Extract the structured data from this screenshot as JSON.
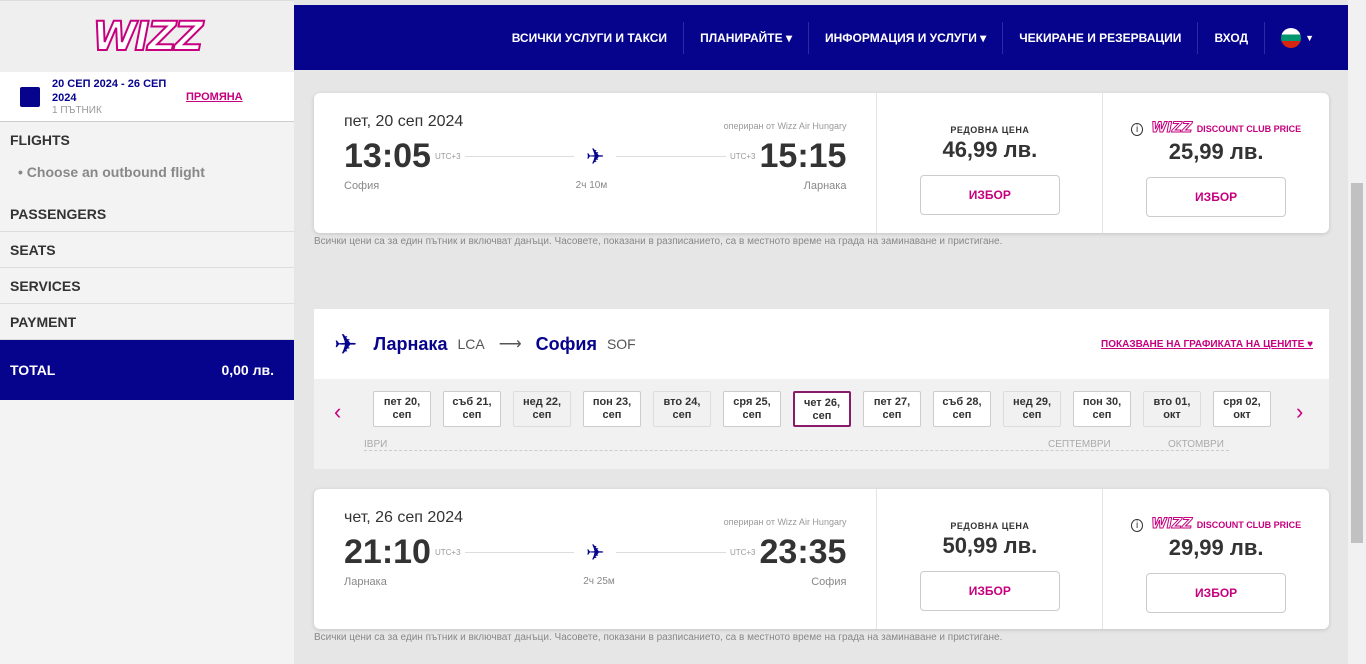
{
  "sidebar": {
    "logo": "WIZZ",
    "trip_dates": "20 СЕП 2024 - 26 СЕП 2024",
    "passengers": "1 ПЪТНИК",
    "change_label": "ПРОМЯНА",
    "steps": [
      "FLIGHTS",
      "PASSENGERS",
      "SEATS",
      "SERVICES",
      "PAYMENT"
    ],
    "current_substep": "Choose an outbound flight",
    "total_label": "TOTAL",
    "total_value": "0,00 лв."
  },
  "header": {
    "nav": [
      "ВСИЧКИ УСЛУГИ И ТАКСИ",
      "ПЛАНИРАЙТЕ ▾",
      "ИНФОРМАЦИЯ И УСЛУГИ ▾",
      "ЧЕКИРАНЕ И РЕЗЕРВАЦИИ",
      "ВХОД"
    ],
    "language": "bg"
  },
  "flights": [
    {
      "date": "пет, 20 сеп 2024",
      "operator": "опериран от Wizz Air Hungary",
      "dep_time": "13:05",
      "arr_time": "15:15",
      "dep_utc": "UTC+3",
      "arr_utc": "UTC+3",
      "duration": "2ч 10м",
      "from": "София",
      "to": "Ларнака",
      "regular_label": "РЕДОВНА ЦЕНА",
      "regular_price": "46,99 лв.",
      "club_label": "DISCOUNT CLUB PRICE",
      "club_price": "25,99 лв.",
      "select": "ИЗБОР"
    },
    {
      "date": "чет, 26 сеп 2024",
      "operator": "опериран от Wizz Air Hungary",
      "dep_time": "21:10",
      "arr_time": "23:35",
      "dep_utc": "UTC+3",
      "arr_utc": "UTC+3",
      "duration": "2ч 25м",
      "from": "Ларнака",
      "to": "София",
      "regular_label": "РЕДОВНА ЦЕНА",
      "regular_price": "50,99 лв.",
      "club_label": "DISCOUNT CLUB PRICE",
      "club_price": "29,99 лв.",
      "select": "ИЗБОР"
    }
  ],
  "note": "Всички цени са за един пътник и включват данъци. Часовете, показани в разписанието, са в местното време на града на заминаване и пристигане.",
  "return_route": {
    "from": "Ларнака",
    "from_code": "LCA",
    "to": "София",
    "to_code": "SOF",
    "price_chart_link": "ПОКАЗВАНЕ НА ГРАФИКАТА НА ЦЕНИТЕ ♥"
  },
  "dates": [
    {
      "label": "пет 20, сеп",
      "state": "available"
    },
    {
      "label": "съб 21, сеп",
      "state": "available"
    },
    {
      "label": "нед 22, сеп",
      "state": "unavailable"
    },
    {
      "label": "пон 23, сеп",
      "state": "available"
    },
    {
      "label": "вто 24, сеп",
      "state": "unavailable"
    },
    {
      "label": "сря 25, сеп",
      "state": "available"
    },
    {
      "label": "чет 26, сеп",
      "state": "selected"
    },
    {
      "label": "пет 27, сеп",
      "state": "available"
    },
    {
      "label": "съб 28, сеп",
      "state": "available"
    },
    {
      "label": "нед 29, сеп",
      "state": "unavailable"
    },
    {
      "label": "пон 30, сеп",
      "state": "available"
    },
    {
      "label": "вто 01, окт",
      "state": "unavailable"
    },
    {
      "label": "сря 02, окт",
      "state": "available"
    }
  ],
  "months": [
    "ІВРИ",
    "СЕПТЕМВРИ",
    "ОКТОМВРИ"
  ]
}
